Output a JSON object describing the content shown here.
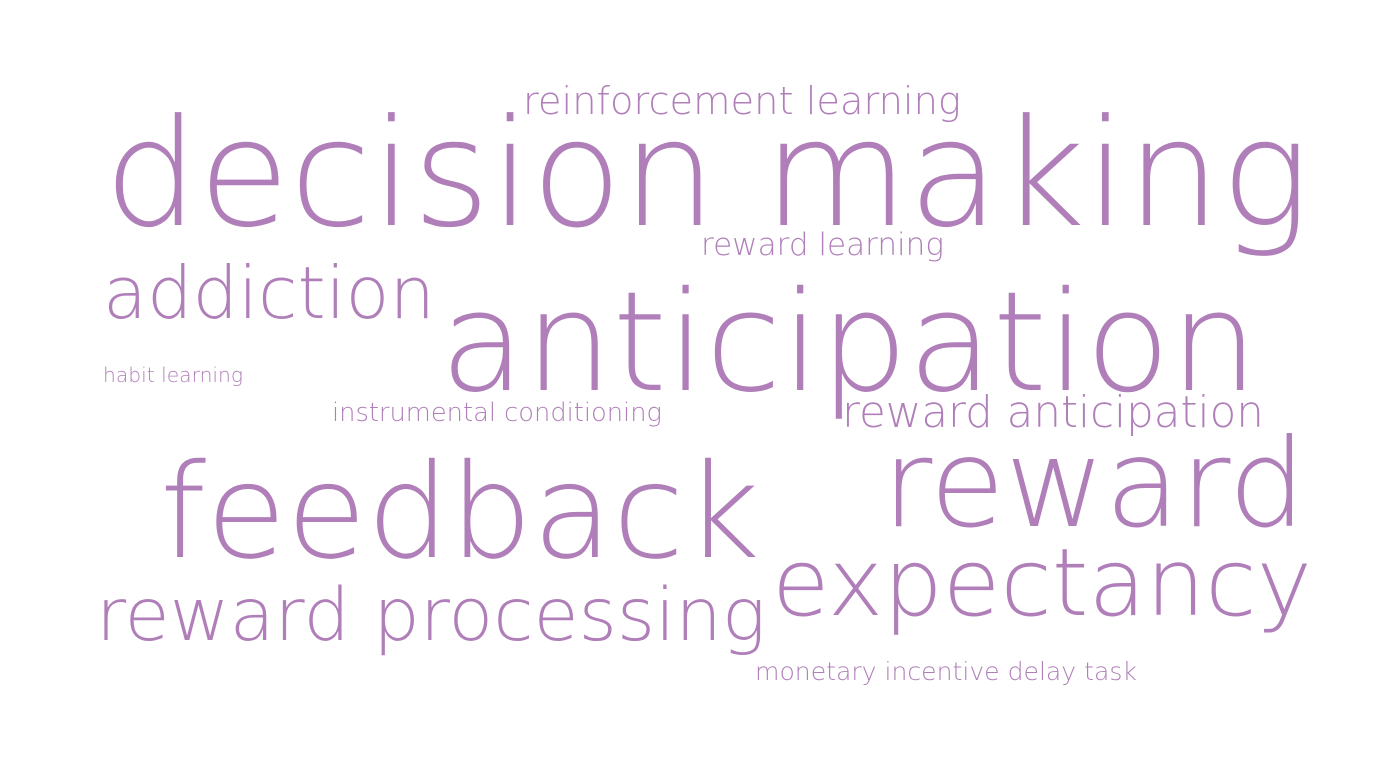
{
  "cloud": {
    "color": "#b07fb9",
    "words": [
      {
        "id": "decision-making",
        "text": "decision making"
      },
      {
        "id": "anticipation",
        "text": "anticipation"
      },
      {
        "id": "feedback",
        "text": "feedback"
      },
      {
        "id": "reward",
        "text": "reward"
      },
      {
        "id": "expectancy",
        "text": "expectancy"
      },
      {
        "id": "reward-processing",
        "text": "reward processing"
      },
      {
        "id": "addiction",
        "text": "addiction"
      },
      {
        "id": "reinforcement-learning",
        "text": "reinforcement learning"
      },
      {
        "id": "reward-anticipation",
        "text": "reward anticipation"
      },
      {
        "id": "reward-learning",
        "text": "reward learning"
      },
      {
        "id": "instrumental-conditioning",
        "text": "instrumental conditioning"
      },
      {
        "id": "monetary-incentive-delay-task",
        "text": "monetary incentive delay task"
      },
      {
        "id": "habit-learning",
        "text": "habit learning"
      }
    ]
  }
}
